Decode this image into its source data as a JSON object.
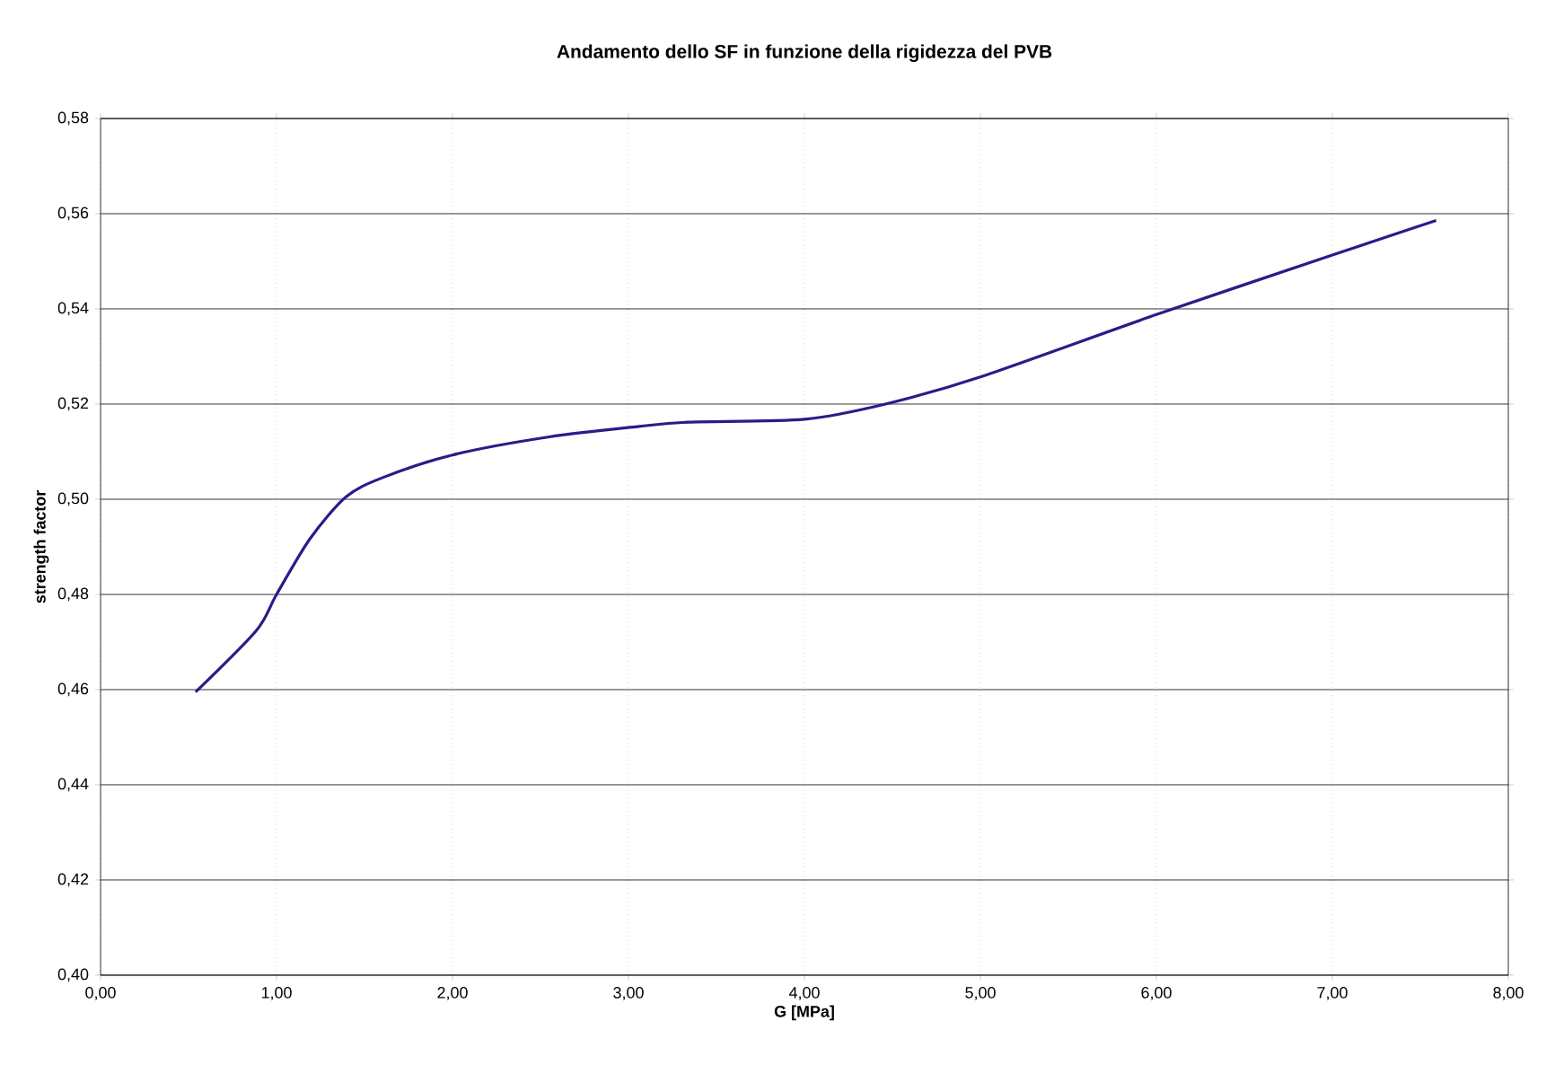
{
  "chart_data": {
    "type": "line",
    "title": "Andamento dello SF in funzione della rigidezza del PVB",
    "xlabel": "G [MPa]",
    "ylabel": "strength factor",
    "series": [
      {
        "color": "#2e1a87",
        "x": [
          0.54,
          0.885,
          1.0,
          1.19,
          1.395,
          1.6,
          2.0,
          2.55,
          3.06,
          3.34,
          4.0,
          4.46,
          5.0,
          6.0,
          7.0,
          7.59
        ],
        "values": [
          0.4595,
          0.4724,
          0.48,
          0.4917,
          0.5005,
          0.5045,
          0.5093,
          0.5131,
          0.5153,
          0.5162,
          0.5168,
          0.52,
          0.5257,
          0.5388,
          0.5513,
          0.5586
        ]
      }
    ],
    "xlim": [
      0,
      8
    ],
    "ylim": [
      0.4,
      0.58
    ],
    "xticks": [
      {
        "value": 0,
        "label": "0,00"
      },
      {
        "value": 1,
        "label": "1,00"
      },
      {
        "value": 2,
        "label": "2,00"
      },
      {
        "value": 3,
        "label": "3,00"
      },
      {
        "value": 4,
        "label": "4,00"
      },
      {
        "value": 5,
        "label": "5,00"
      },
      {
        "value": 6,
        "label": "6,00"
      },
      {
        "value": 7,
        "label": "7,00"
      },
      {
        "value": 8,
        "label": "8,00"
      }
    ],
    "yticks": [
      {
        "value": 0.4,
        "label": "0,40"
      },
      {
        "value": 0.42,
        "label": "0,42"
      },
      {
        "value": 0.44,
        "label": "0,44"
      },
      {
        "value": 0.46,
        "label": "0,46"
      },
      {
        "value": 0.48,
        "label": "0,48"
      },
      {
        "value": 0.5,
        "label": "0,50"
      },
      {
        "value": 0.52,
        "label": "0,52"
      },
      {
        "value": 0.54,
        "label": "0,54"
      },
      {
        "value": 0.56,
        "label": "0,56"
      },
      {
        "value": 0.58,
        "label": "0,58"
      }
    ],
    "grid": true,
    "marker": "none",
    "line_style": "solid"
  }
}
